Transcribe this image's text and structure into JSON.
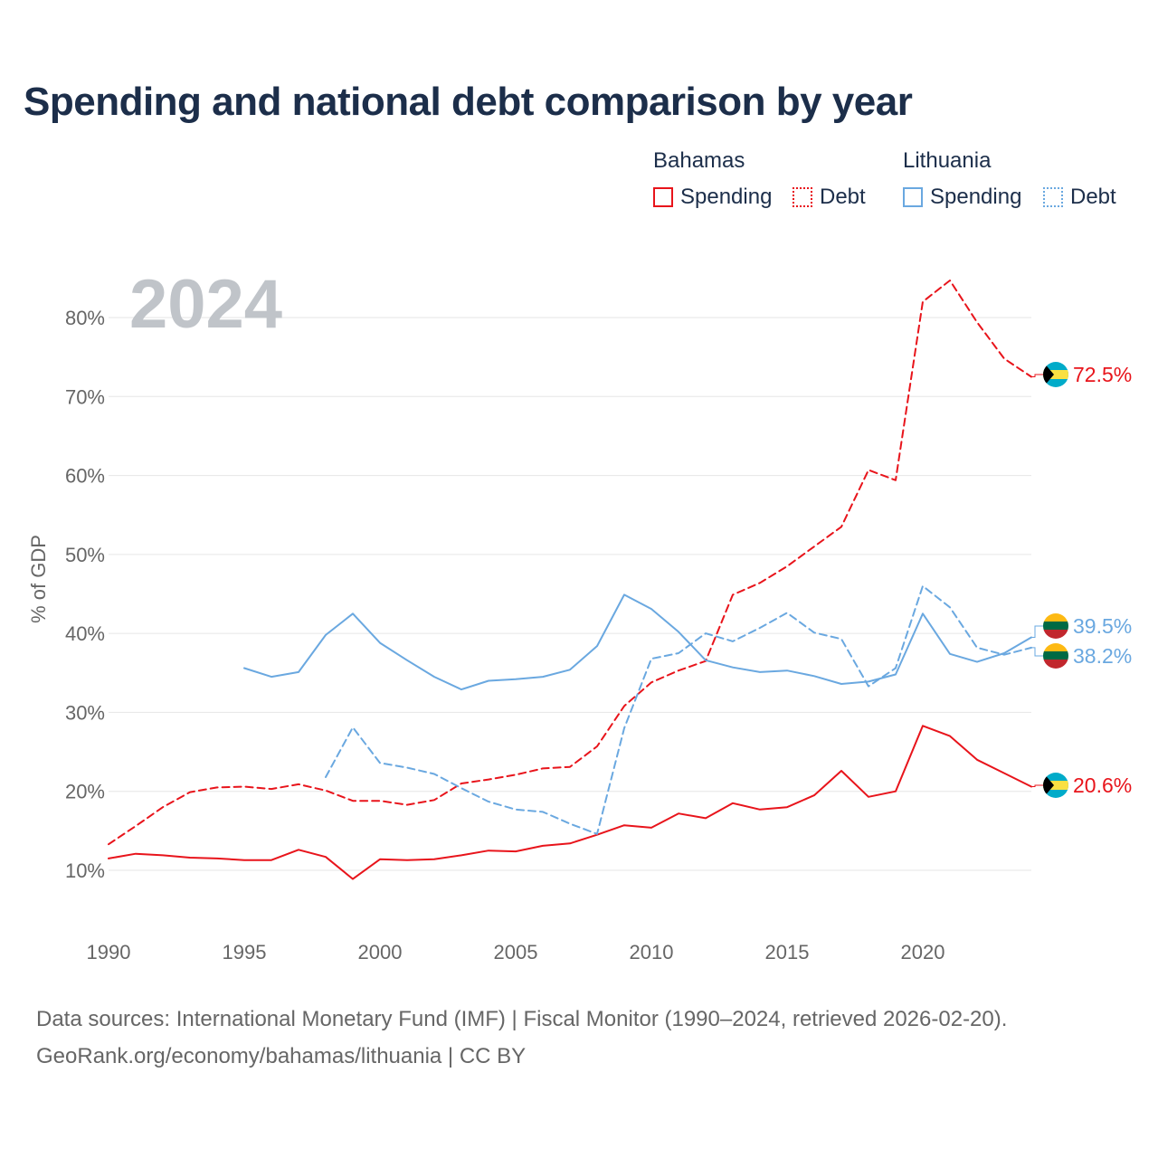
{
  "chart_data": {
    "type": "line",
    "title": "Spending and national debt comparison by year",
    "ylabel": "% of GDP",
    "xlabel": "",
    "year_watermark": "2024",
    "xlim": [
      1990,
      2024
    ],
    "ylim": [
      5,
      86
    ],
    "x_ticks": [
      1990,
      1995,
      2000,
      2005,
      2010,
      2015,
      2020
    ],
    "y_ticks": [
      10,
      20,
      30,
      40,
      50,
      60,
      70,
      80
    ],
    "y_tick_labels": [
      "10%",
      "20%",
      "30%",
      "40%",
      "50%",
      "60%",
      "70%",
      "80%"
    ],
    "legend": {
      "groups": [
        {
          "name": "Bahamas",
          "items": [
            "Spending",
            "Debt"
          ]
        },
        {
          "name": "Lithuania",
          "items": [
            "Spending",
            "Debt"
          ]
        }
      ]
    },
    "colors": {
      "bahamas": "#e8141b",
      "lithuania": "#6aa8e0",
      "title": "#1c2e4a",
      "axis_text": "#666666",
      "grid": "#e6e6e6",
      "watermark": "#c0c4c9"
    },
    "series": [
      {
        "name": "Bahamas Spending",
        "country": "Bahamas",
        "metric": "Spending",
        "style": "solid",
        "color": "#e8141b",
        "x": [
          1990,
          1991,
          1992,
          1993,
          1994,
          1995,
          1996,
          1997,
          1998,
          1999,
          2000,
          2001,
          2002,
          2003,
          2004,
          2005,
          2006,
          2007,
          2008,
          2009,
          2010,
          2011,
          2012,
          2013,
          2014,
          2015,
          2016,
          2017,
          2018,
          2019,
          2020,
          2021,
          2022,
          2023,
          2024
        ],
        "values": [
          11.5,
          12.1,
          11.9,
          11.6,
          11.5,
          11.3,
          11.3,
          12.6,
          11.7,
          8.9,
          11.4,
          11.3,
          11.4,
          11.9,
          12.5,
          12.4,
          13.1,
          13.4,
          14.5,
          15.7,
          15.4,
          17.2,
          16.6,
          18.5,
          17.7,
          18.0,
          19.5,
          22.6,
          19.3,
          20.0,
          28.3,
          27.0,
          24.0,
          22.3,
          20.6
        ],
        "end_label": "20.6%"
      },
      {
        "name": "Bahamas Debt",
        "country": "Bahamas",
        "metric": "Debt",
        "style": "dashed",
        "color": "#e8141b",
        "x": [
          1990,
          1991,
          1992,
          1993,
          1994,
          1995,
          1996,
          1997,
          1998,
          1999,
          2000,
          2001,
          2002,
          2003,
          2004,
          2005,
          2006,
          2007,
          2008,
          2009,
          2010,
          2011,
          2012,
          2013,
          2014,
          2015,
          2016,
          2017,
          2018,
          2019,
          2020,
          2021,
          2022,
          2023,
          2024
        ],
        "values": [
          13.3,
          15.6,
          18.0,
          19.9,
          20.5,
          20.6,
          20.3,
          20.9,
          20.1,
          18.8,
          18.8,
          18.3,
          18.9,
          21.0,
          21.5,
          22.1,
          22.9,
          23.1,
          25.7,
          30.8,
          33.8,
          35.3,
          36.5,
          44.9,
          46.4,
          48.5,
          51.0,
          53.5,
          60.7,
          59.4,
          82.0,
          84.7,
          79.4,
          74.8,
          72.5
        ],
        "end_label": "72.5%"
      },
      {
        "name": "Lithuania Spending",
        "country": "Lithuania",
        "metric": "Spending",
        "style": "solid",
        "color": "#6aa8e0",
        "x": [
          1995,
          1996,
          1997,
          1998,
          1999,
          2000,
          2001,
          2002,
          2003,
          2004,
          2005,
          2006,
          2007,
          2008,
          2009,
          2010,
          2011,
          2012,
          2013,
          2014,
          2015,
          2016,
          2017,
          2018,
          2019,
          2020,
          2021,
          2022,
          2023,
          2024
        ],
        "values": [
          35.6,
          34.5,
          35.1,
          39.8,
          42.5,
          38.8,
          36.6,
          34.5,
          32.9,
          34.0,
          34.2,
          34.5,
          35.4,
          38.4,
          44.9,
          43.1,
          40.2,
          36.6,
          35.7,
          35.1,
          35.3,
          34.6,
          33.6,
          33.9,
          34.8,
          42.5,
          37.4,
          36.4,
          37.5,
          39.5
        ],
        "end_label": "39.5%"
      },
      {
        "name": "Lithuania Debt",
        "country": "Lithuania",
        "metric": "Debt",
        "style": "dashed",
        "color": "#6aa8e0",
        "x": [
          1998,
          1999,
          2000,
          2001,
          2002,
          2003,
          2004,
          2005,
          2006,
          2007,
          2008,
          2009,
          2010,
          2011,
          2012,
          2013,
          2014,
          2015,
          2016,
          2017,
          2018,
          2019,
          2020,
          2021,
          2022,
          2023,
          2024
        ],
        "values": [
          21.8,
          28.1,
          23.6,
          23.0,
          22.2,
          20.4,
          18.7,
          17.7,
          17.4,
          15.9,
          14.6,
          28.0,
          36.8,
          37.5,
          40.0,
          39.0,
          40.7,
          42.6,
          40.1,
          39.3,
          33.3,
          35.6,
          46.0,
          43.3,
          38.2,
          37.3,
          38.2
        ],
        "end_label": "38.2%"
      }
    ]
  },
  "footer": {
    "sources": "Data sources: International Monetary Fund (IMF) | Fiscal Monitor (1990–2024, retrieved 2026-02-20).",
    "attribution": "GeoRank.org/economy/bahamas/lithuania | CC BY"
  }
}
